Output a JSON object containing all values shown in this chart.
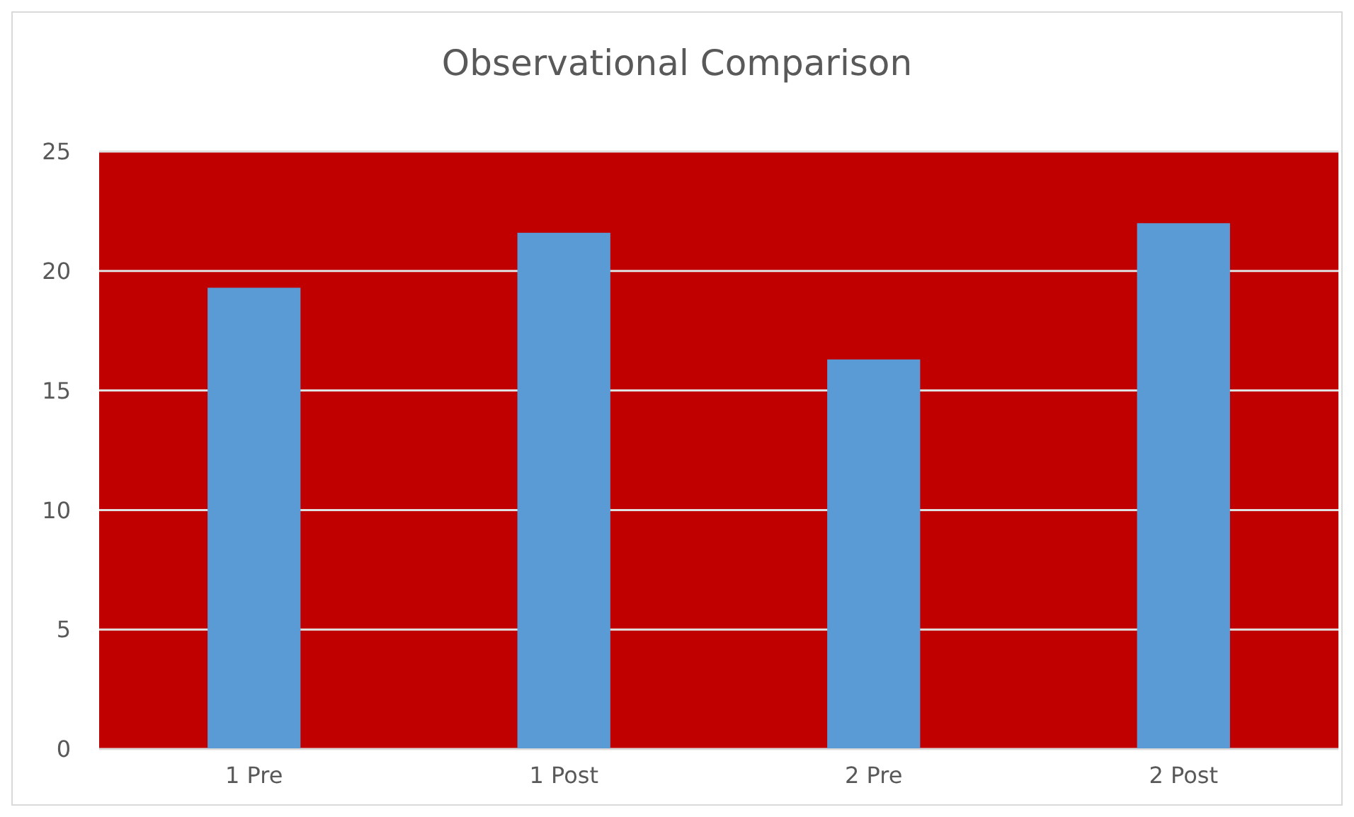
{
  "chart_data": {
    "type": "bar",
    "title": "Observational Comparison",
    "categories": [
      "1 Pre",
      "1 Post",
      "2 Pre",
      "2 Post"
    ],
    "values": [
      19.3,
      21.6,
      16.3,
      22.0
    ],
    "color": "#5b9bd5",
    "ylim": [
      0,
      25
    ],
    "yticks": [
      0,
      5,
      10,
      15,
      20,
      25
    ],
    "grid": "y"
  }
}
